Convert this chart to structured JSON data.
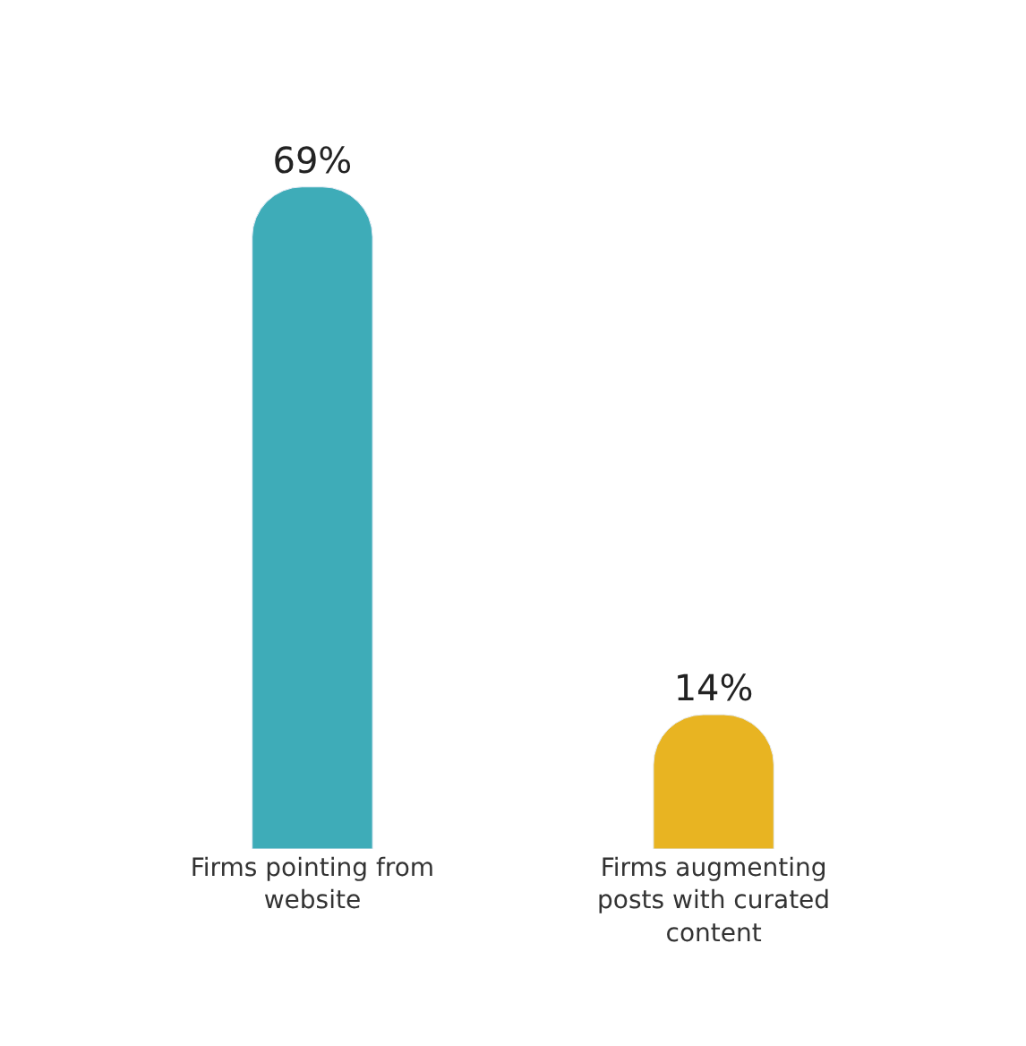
{
  "chart_data": {
    "type": "bar",
    "categories": [
      "Firms pointing from website",
      "Firms augmenting posts with curated content"
    ],
    "values": [
      69,
      14
    ],
    "tick_labels": "x",
    "colors": [
      "#3eacb8",
      "#e8b422"
    ],
    "value_labels": [
      "69%",
      "14%"
    ]
  }
}
